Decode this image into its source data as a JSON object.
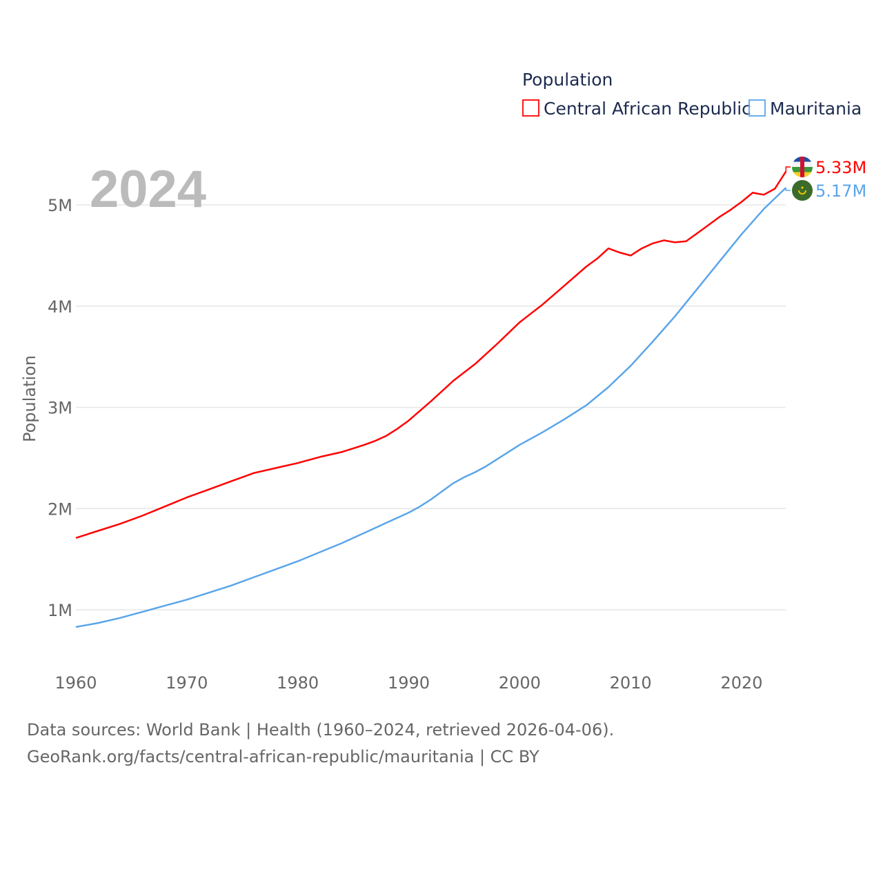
{
  "chart_data": {
    "type": "line",
    "title": "Population",
    "year_label": "2024",
    "ylabel": "Population",
    "xlabel": "",
    "xlim": [
      1960,
      2024
    ],
    "ylim": [
      0.6,
      5.5
    ],
    "x_ticks": [
      1960,
      1970,
      1980,
      1990,
      2000,
      2010,
      2020
    ],
    "y_ticks": [
      {
        "value": 1,
        "label": "1M"
      },
      {
        "value": 2,
        "label": "2M"
      },
      {
        "value": 3,
        "label": "3M"
      },
      {
        "value": 4,
        "label": "4M"
      },
      {
        "value": 5,
        "label": "5M"
      }
    ],
    "grid": true,
    "legend_position": "top-right",
    "series": [
      {
        "name": "Central African Republic",
        "color": "#ff0000",
        "end_label": "5.33M",
        "flag": "central-african-republic-flag",
        "points": [
          [
            1960,
            1.71
          ],
          [
            1962,
            1.78
          ],
          [
            1964,
            1.85
          ],
          [
            1966,
            1.93
          ],
          [
            1968,
            2.02
          ],
          [
            1970,
            2.11
          ],
          [
            1972,
            2.19
          ],
          [
            1974,
            2.27
          ],
          [
            1975,
            2.31
          ],
          [
            1976,
            2.35
          ],
          [
            1978,
            2.4
          ],
          [
            1980,
            2.45
          ],
          [
            1982,
            2.51
          ],
          [
            1984,
            2.56
          ],
          [
            1986,
            2.63
          ],
          [
            1987,
            2.67
          ],
          [
            1988,
            2.72
          ],
          [
            1989,
            2.79
          ],
          [
            1990,
            2.87
          ],
          [
            1992,
            3.06
          ],
          [
            1994,
            3.26
          ],
          [
            1996,
            3.43
          ],
          [
            1998,
            3.63
          ],
          [
            2000,
            3.84
          ],
          [
            2002,
            4.01
          ],
          [
            2004,
            4.2
          ],
          [
            2006,
            4.39
          ],
          [
            2007,
            4.47
          ],
          [
            2008,
            4.57
          ],
          [
            2009,
            4.53
          ],
          [
            2010,
            4.5
          ],
          [
            2011,
            4.57
          ],
          [
            2012,
            4.62
          ],
          [
            2013,
            4.65
          ],
          [
            2014,
            4.63
          ],
          [
            2015,
            4.64
          ],
          [
            2016,
            4.72
          ],
          [
            2017,
            4.8
          ],
          [
            2018,
            4.88
          ],
          [
            2019,
            4.95
          ],
          [
            2020,
            5.03
          ],
          [
            2021,
            5.12
          ],
          [
            2022,
            5.1
          ],
          [
            2023,
            5.16
          ],
          [
            2024,
            5.33
          ]
        ]
      },
      {
        "name": "Mauritania",
        "color": "#5aa5ea",
        "end_label": "5.17M",
        "flag": "mauritania-flag",
        "points": [
          [
            1960,
            0.83
          ],
          [
            1962,
            0.87
          ],
          [
            1964,
            0.92
          ],
          [
            1966,
            0.98
          ],
          [
            1968,
            1.04
          ],
          [
            1970,
            1.1
          ],
          [
            1972,
            1.17
          ],
          [
            1974,
            1.24
          ],
          [
            1976,
            1.32
          ],
          [
            1978,
            1.4
          ],
          [
            1980,
            1.48
          ],
          [
            1982,
            1.57
          ],
          [
            1984,
            1.66
          ],
          [
            1986,
            1.76
          ],
          [
            1988,
            1.86
          ],
          [
            1990,
            1.96
          ],
          [
            1991,
            2.02
          ],
          [
            1992,
            2.09
          ],
          [
            1993,
            2.17
          ],
          [
            1994,
            2.25
          ],
          [
            1995,
            2.31
          ],
          [
            1996,
            2.36
          ],
          [
            1997,
            2.42
          ],
          [
            1998,
            2.49
          ],
          [
            2000,
            2.63
          ],
          [
            2002,
            2.75
          ],
          [
            2004,
            2.88
          ],
          [
            2006,
            3.02
          ],
          [
            2008,
            3.2
          ],
          [
            2010,
            3.41
          ],
          [
            2012,
            3.65
          ],
          [
            2014,
            3.9
          ],
          [
            2016,
            4.17
          ],
          [
            2018,
            4.44
          ],
          [
            2020,
            4.71
          ],
          [
            2022,
            4.96
          ],
          [
            2024,
            5.17
          ]
        ]
      }
    ]
  },
  "footer": {
    "line1": "Data sources: World Bank | Health (1960–2024, retrieved 2026-04-06).",
    "line2": "GeoRank.org/facts/central-african-republic/mauritania | CC BY"
  }
}
